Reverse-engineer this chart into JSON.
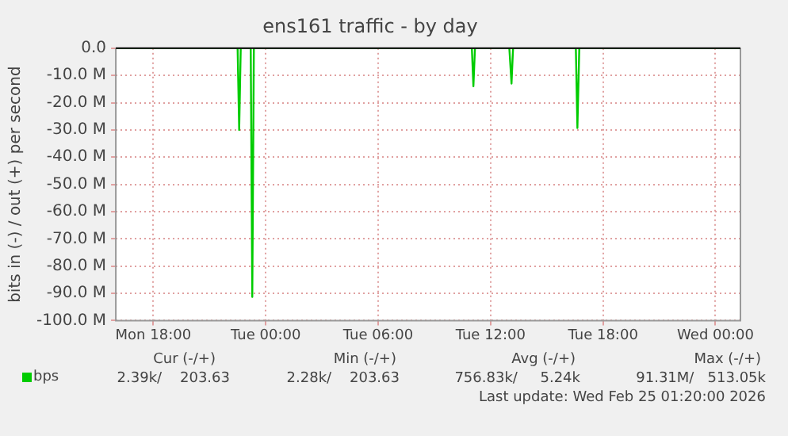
{
  "chart_data": {
    "type": "line",
    "title": "ens161 traffic - by day",
    "ylabel": "bits in (-) / out (+) per second",
    "x": [
      "2026-02-23T16:00",
      "2026-02-23T22:24",
      "2026-02-23T22:30",
      "2026-02-23T22:35",
      "2026-02-23T22:40",
      "2026-02-23T23:06",
      "2026-02-23T23:12",
      "2026-02-23T23:17",
      "2026-02-23T23:22",
      "2026-02-24T10:54",
      "2026-02-24T11:00",
      "2026-02-24T11:05",
      "2026-02-24T11:10",
      "2026-02-24T12:54",
      "2026-02-24T13:00",
      "2026-02-24T13:07",
      "2026-02-24T13:12",
      "2026-02-24T16:27",
      "2026-02-24T16:33",
      "2026-02-24T16:38",
      "2026-02-24T16:44",
      "2026-02-25T01:20"
    ],
    "series": [
      {
        "name": "bps",
        "color": "#00cc00",
        "values": [
          0,
          0,
          0,
          -30,
          0,
          0,
          0,
          -91.3,
          0,
          0,
          0,
          -14,
          0,
          0,
          0,
          -13,
          0,
          0,
          0,
          -29.3,
          0,
          0
        ]
      }
    ],
    "xlim": [
      "2026-02-23T16:00",
      "2026-02-25T01:20"
    ],
    "xticks": [
      {
        "value": "2026-02-23T18:00",
        "label": "Mon 18:00"
      },
      {
        "value": "2026-02-24T00:00",
        "label": "Tue 00:00"
      },
      {
        "value": "2026-02-24T06:00",
        "label": "Tue 06:00"
      },
      {
        "value": "2026-02-24T12:00",
        "label": "Tue 12:00"
      },
      {
        "value": "2026-02-24T18:00",
        "label": "Tue 18:00"
      },
      {
        "value": "2026-02-25T00:00",
        "label": "Wed 00:00"
      }
    ],
    "ylim": [
      -100,
      0
    ],
    "yticks": [
      {
        "value": -100,
        "label": "-100.0 M"
      },
      {
        "value": -90,
        "label": "-90.0 M"
      },
      {
        "value": -80,
        "label": "-80.0 M"
      },
      {
        "value": -70,
        "label": "-70.0 M"
      },
      {
        "value": -60,
        "label": "-60.0 M"
      },
      {
        "value": -50,
        "label": "-50.0 M"
      },
      {
        "value": -40,
        "label": "-40.0 M"
      },
      {
        "value": -30,
        "label": "-30.0 M"
      },
      {
        "value": -20,
        "label": "-20.0 M"
      },
      {
        "value": -10,
        "label": "-10.0 M"
      },
      {
        "value": 0,
        "label": "0.0"
      }
    ],
    "grid": true,
    "legend": "bottom left",
    "marker": "none",
    "line_style": "solid",
    "annotations": [
      "Cur (-/+)",
      "Min (-/+)",
      "Avg (-/+)",
      "Max (-/+)",
      "2.39k/    203.63",
      "2.28k/    203.63",
      "756.83k/     5.24k",
      "91.31M/   513.05k",
      "Last update: Wed Feb 25 01:20:00 2026"
    ]
  }
}
